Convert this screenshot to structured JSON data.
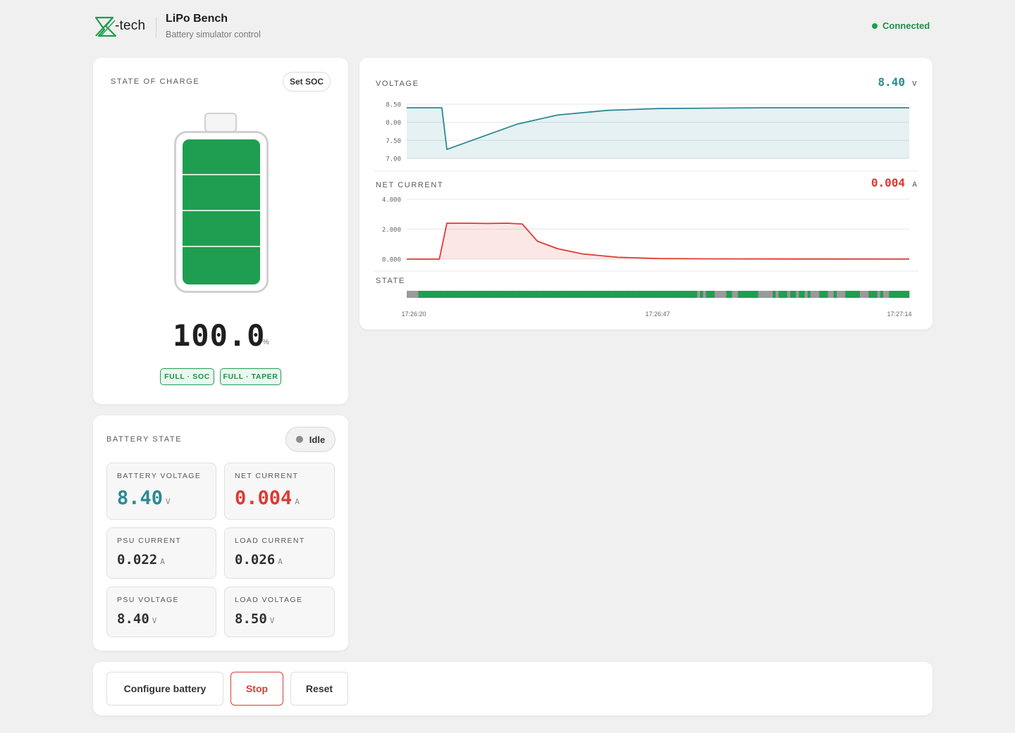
{
  "header": {
    "logo_text": "-tech",
    "title": "LiPo Bench",
    "subtitle": "Battery simulator control",
    "connection_status": "Connected",
    "connection_color": "#1e9e4f"
  },
  "soc": {
    "label": "STATE OF CHARGE",
    "set_button": "Set SOC",
    "value": "100.0",
    "unit": "%",
    "fill_fraction": 1.0,
    "tags": [
      "FULL · SOC",
      "FULL · TAPER"
    ]
  },
  "battery_state": {
    "label": "BATTERY STATE",
    "status": "Idle",
    "metrics": {
      "battery_voltage": {
        "label": "BATTERY VOLTAGE",
        "value": "8.40",
        "unit": "V",
        "color": "#2a8a94"
      },
      "net_current": {
        "label": "NET CURRENT",
        "value": "0.004",
        "unit": "A",
        "color": "#de3a33"
      },
      "psu_current": {
        "label": "PSU CURRENT",
        "value": "0.022",
        "unit": "A"
      },
      "load_current": {
        "label": "LOAD CURRENT",
        "value": "0.026",
        "unit": "A"
      },
      "psu_voltage": {
        "label": "PSU VOLTAGE",
        "value": "8.40",
        "unit": "V"
      },
      "load_voltage": {
        "label": "LOAD VOLTAGE",
        "value": "8.50",
        "unit": "V"
      }
    }
  },
  "actions": {
    "configure": "Configure battery",
    "stop": "Stop",
    "reset": "Reset"
  },
  "chart_data": [
    {
      "type": "area",
      "title": "VOLTAGE",
      "current_value": "8.40",
      "unit": "V",
      "color": "#2a8a94",
      "yticks": [
        "8.50",
        "8.00",
        "7.50",
        "7.00"
      ],
      "ylim": [
        7.0,
        8.5
      ],
      "x": [
        0,
        0.07,
        0.08,
        0.15,
        0.22,
        0.3,
        0.4,
        0.5,
        0.6,
        0.7,
        0.8,
        0.9,
        1.0
      ],
      "values": [
        8.4,
        8.4,
        7.25,
        7.6,
        7.95,
        8.2,
        8.33,
        8.38,
        8.39,
        8.4,
        8.4,
        8.4,
        8.4
      ]
    },
    {
      "type": "area",
      "title": "NET CURRENT",
      "current_value": "0.004",
      "unit": "A",
      "color": "#de3a33",
      "yticks": [
        "4.000",
        "2.000",
        "0.000"
      ],
      "ylim": [
        0.0,
        4.0
      ],
      "x": [
        0,
        0.065,
        0.08,
        0.12,
        0.16,
        0.2,
        0.23,
        0.26,
        0.3,
        0.35,
        0.42,
        0.5,
        0.6,
        0.8,
        1.0
      ],
      "values": [
        0.0,
        0.0,
        2.4,
        2.4,
        2.38,
        2.4,
        2.35,
        1.2,
        0.7,
        0.35,
        0.12,
        0.04,
        0.02,
        0.01,
        0.004
      ]
    },
    {
      "type": "state-strip",
      "title": "STATE",
      "x_ticks": [
        "17:26:20",
        "17:26:47",
        "17:27:14"
      ],
      "colors": {
        "charging": "#1f9e52",
        "idle": "#9a9a9a"
      },
      "segments": "iiiiggggggggggggggggggggggggggggggggggggggggggggggggggggggggggggggggggggggggggggggggggggggggggggggggigigggiiiiggiigggggggiiiiigigggiggiggigiiigggiigiiigggggiiigggigiiggggggg"
    }
  ]
}
